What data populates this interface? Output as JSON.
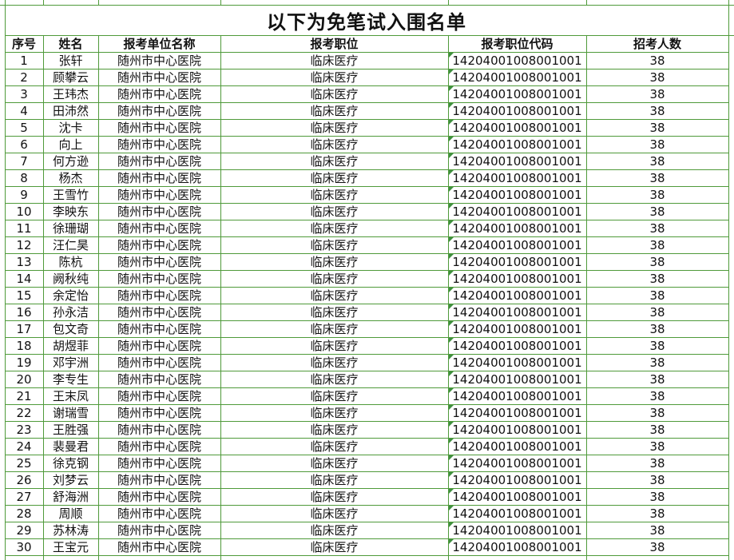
{
  "title": "以下为免笔试入围名单",
  "table": {
    "header": [
      "序号",
      "姓名",
      "报考单位名称",
      "报考职位",
      "报考职位代码",
      "招考人数"
    ],
    "rows": [
      [
        1,
        "张轩",
        "随州市中心医院",
        "临床医疗",
        "14204001008001001",
        38
      ],
      [
        2,
        "顾攀云",
        "随州市中心医院",
        "临床医疗",
        "14204001008001001",
        38
      ],
      [
        3,
        "王玮杰",
        "随州市中心医院",
        "临床医疗",
        "14204001008001001",
        38
      ],
      [
        4,
        "田沛然",
        "随州市中心医院",
        "临床医疗",
        "14204001008001001",
        38
      ],
      [
        5,
        "沈卡",
        "随州市中心医院",
        "临床医疗",
        "14204001008001001",
        38
      ],
      [
        6,
        "向上",
        "随州市中心医院",
        "临床医疗",
        "14204001008001001",
        38
      ],
      [
        7,
        "何方逊",
        "随州市中心医院",
        "临床医疗",
        "14204001008001001",
        38
      ],
      [
        8,
        "杨杰",
        "随州市中心医院",
        "临床医疗",
        "14204001008001001",
        38
      ],
      [
        9,
        "王雪竹",
        "随州市中心医院",
        "临床医疗",
        "14204001008001001",
        38
      ],
      [
        10,
        "李映东",
        "随州市中心医院",
        "临床医疗",
        "14204001008001001",
        38
      ],
      [
        11,
        "徐珊瑚",
        "随州市中心医院",
        "临床医疗",
        "14204001008001001",
        38
      ],
      [
        12,
        "汪仁昊",
        "随州市中心医院",
        "临床医疗",
        "14204001008001001",
        38
      ],
      [
        13,
        "陈杭",
        "随州市中心医院",
        "临床医疗",
        "14204001008001001",
        38
      ],
      [
        14,
        "阙秋纯",
        "随州市中心医院",
        "临床医疗",
        "14204001008001001",
        38
      ],
      [
        15,
        "余定怡",
        "随州市中心医院",
        "临床医疗",
        "14204001008001001",
        38
      ],
      [
        16,
        "孙永洁",
        "随州市中心医院",
        "临床医疗",
        "14204001008001001",
        38
      ],
      [
        17,
        "包文奇",
        "随州市中心医院",
        "临床医疗",
        "14204001008001001",
        38
      ],
      [
        18,
        "胡煜菲",
        "随州市中心医院",
        "临床医疗",
        "14204001008001001",
        38
      ],
      [
        19,
        "邓宇洲",
        "随州市中心医院",
        "临床医疗",
        "14204001008001001",
        38
      ],
      [
        20,
        "李专生",
        "随州市中心医院",
        "临床医疗",
        "14204001008001001",
        38
      ],
      [
        21,
        "王末凤",
        "随州市中心医院",
        "临床医疗",
        "14204001008001001",
        38
      ],
      [
        22,
        "谢瑞雪",
        "随州市中心医院",
        "临床医疗",
        "14204001008001001",
        38
      ],
      [
        23,
        "王胜强",
        "随州市中心医院",
        "临床医疗",
        "14204001008001001",
        38
      ],
      [
        24,
        "裴曼君",
        "随州市中心医院",
        "临床医疗",
        "14204001008001001",
        38
      ],
      [
        25,
        "徐克钢",
        "随州市中心医院",
        "临床医疗",
        "14204001008001001",
        38
      ],
      [
        26,
        "刘梦云",
        "随州市中心医院",
        "临床医疗",
        "14204001008001001",
        38
      ],
      [
        27,
        "舒海洲",
        "随州市中心医院",
        "临床医疗",
        "14204001008001001",
        38
      ],
      [
        28,
        "周顺",
        "随州市中心医院",
        "临床医疗",
        "14204001008001001",
        38
      ],
      [
        29,
        "苏林涛",
        "随州市中心医院",
        "临床医疗",
        "14204001008001001",
        38
      ],
      [
        30,
        "王宝元",
        "随州市中心医院",
        "临床医疗",
        "14204001008001001",
        38
      ]
    ]
  }
}
